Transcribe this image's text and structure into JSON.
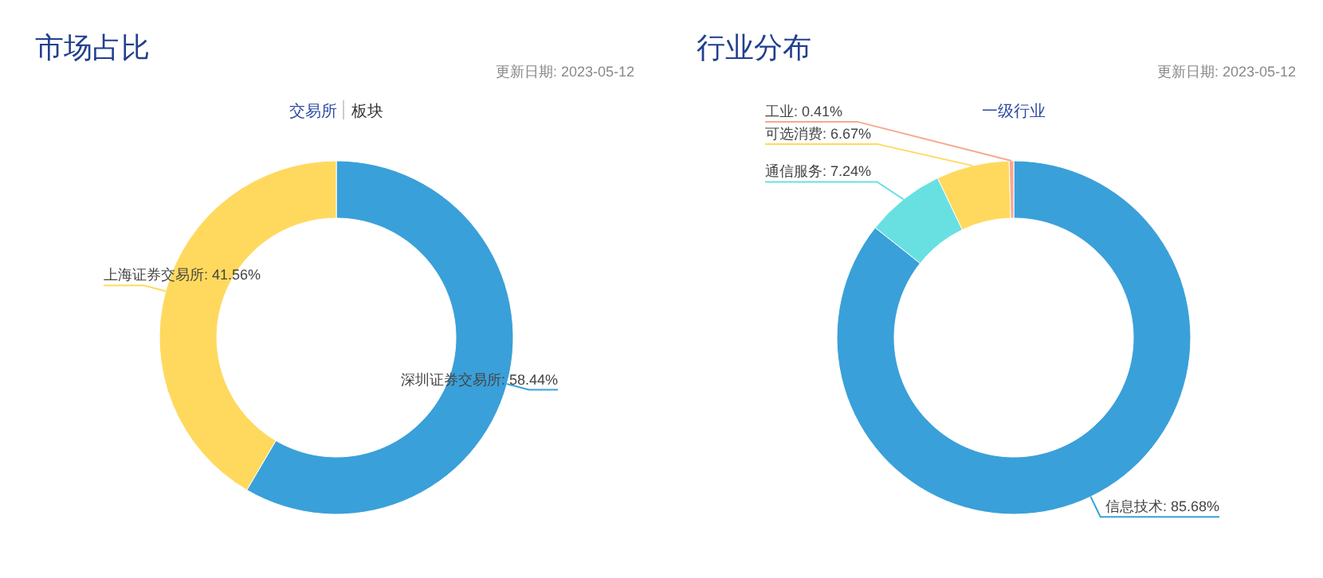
{
  "chart_data": [
    {
      "type": "donut",
      "title": "市场占比",
      "subtitle": "交易所",
      "annotations": [
        "更新日期: 2023-05-12",
        "板块"
      ],
      "categories": [
        "深圳证券交易所",
        "上海证券交易所"
      ],
      "values": [
        58.44,
        41.56
      ],
      "colors": [
        "#3aa0d9",
        "#ffd95e"
      ],
      "value_labels": [
        ": 58.44%",
        ": 41.56%"
      ]
    },
    {
      "type": "donut",
      "title": "行业分布",
      "subtitle": "一级行业",
      "annotations": [
        "更新日期: 2023-05-12"
      ],
      "categories": [
        "信息技术",
        "通信服务",
        "可选消费",
        "工业"
      ],
      "values": [
        85.68,
        7.24,
        6.67,
        0.41
      ],
      "colors": [
        "#3aa0d9",
        "#68e0e1",
        "#ffd95e",
        "#f6a88e"
      ],
      "value_labels": [
        ": 85.68%",
        ": 7.24%",
        ": 6.67%",
        ": 0.41%"
      ]
    }
  ]
}
